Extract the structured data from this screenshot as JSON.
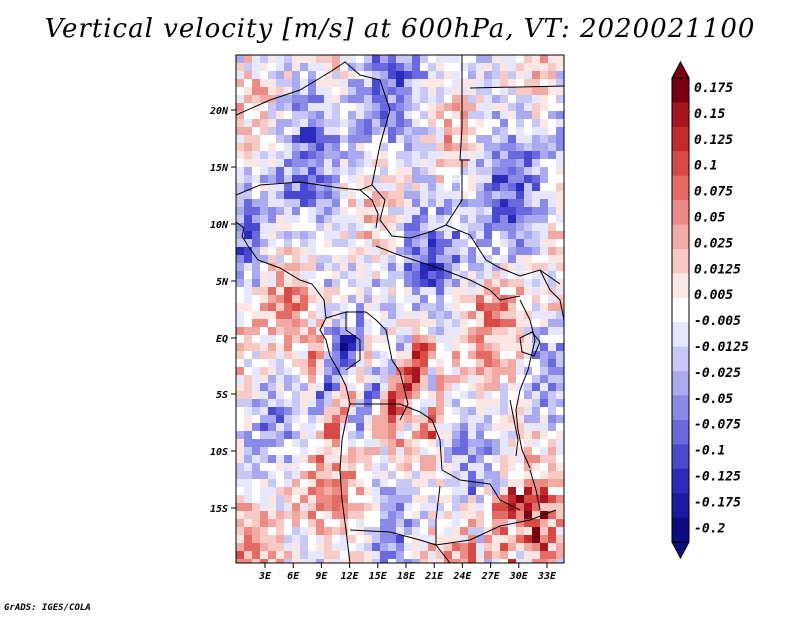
{
  "title": "Vertical velocity [m/s] at 600hPa, VT: 2020021100",
  "credit": "GrADS: IGES/COLA",
  "lon_ticks": [
    "3E",
    "6E",
    "9E",
    "12E",
    "15E",
    "18E",
    "21E",
    "24E",
    "27E",
    "30E",
    "33E"
  ],
  "lat_ticks": [
    "20N",
    "15N",
    "10N",
    "5N",
    "EQ",
    "5S",
    "10S",
    "15S"
  ],
  "colorbar": {
    "labels": [
      "0.175",
      "0.15",
      "0.125",
      "0.1",
      "0.075",
      "0.05",
      "0.025",
      "0.0125",
      "0.005",
      "-0.005",
      "-0.0125",
      "-0.025",
      "-0.05",
      "-0.075",
      "-0.1",
      "-0.125",
      "-0.175",
      "-0.2"
    ],
    "colors": [
      "#7a0010",
      "#a81420",
      "#c42a2c",
      "#d84a46",
      "#e46a64",
      "#ec8a84",
      "#f2aaa4",
      "#f8cac6",
      "#fce6e4",
      "#ffffff",
      "#e6e6fc",
      "#c8c8f6",
      "#aaaaf0",
      "#8a8ae8",
      "#6a6ade",
      "#4a4ad0",
      "#2c2cbc",
      "#1a1aa4",
      "#0c0c80"
    ]
  }
}
